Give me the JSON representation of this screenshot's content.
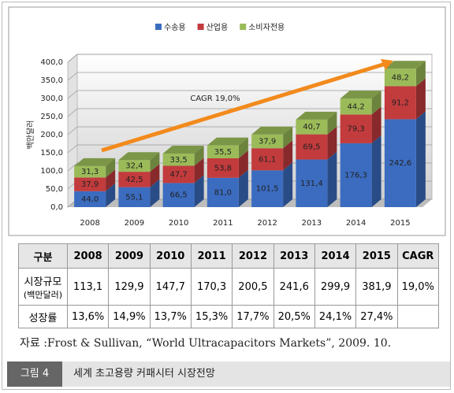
{
  "chart_data": {
    "type": "bar3d-stacked",
    "categories": [
      "2008",
      "2009",
      "2010",
      "2011",
      "2012",
      "2013",
      "2014",
      "2015"
    ],
    "series": [
      {
        "name": "수송용",
        "color": "#3b6cc0",
        "values": [
          44.0,
          55.1,
          66.5,
          81.0,
          101.5,
          131.4,
          176.3,
          242.6
        ],
        "value_labels": [
          "44,0",
          "55,1",
          "66,5",
          "81,0",
          "101,5",
          "131,4",
          "176,3",
          "242,6"
        ]
      },
      {
        "name": "산업용",
        "color": "#c23b3d",
        "values": [
          37.9,
          42.5,
          47.7,
          53.8,
          61.1,
          69.5,
          79.3,
          91.2
        ],
        "value_labels": [
          "37,9",
          "42,5",
          "47,7",
          "53,8",
          "61,1",
          "69,5",
          "79,3",
          "91,2"
        ]
      },
      {
        "name": "소비자전용",
        "color": "#9bbb59",
        "values": [
          31.3,
          32.4,
          33.5,
          35.5,
          37.9,
          40.7,
          44.2,
          48.2
        ],
        "value_labels": [
          "31,3",
          "32,4",
          "33,5",
          "35,5",
          "37,9",
          "40,7",
          "44,2",
          "48,2"
        ]
      }
    ],
    "ylabel": "백만달러",
    "annotation": "CAGR 19,0%",
    "ylim": [
      0,
      400
    ],
    "yticks": [
      {
        "value": 0,
        "label": "0,0"
      },
      {
        "value": 50,
        "label": "50,0"
      },
      {
        "value": 100,
        "label": "100,0"
      },
      {
        "value": 150,
        "label": "150,0"
      },
      {
        "value": 200,
        "label": "200,0"
      },
      {
        "value": 250,
        "label": "250,0"
      },
      {
        "value": 300,
        "label": "300,0"
      },
      {
        "value": 350,
        "label": "350,0"
      },
      {
        "value": 400,
        "label": "400,0"
      }
    ],
    "grid": true
  },
  "table": {
    "header": [
      "구분",
      "2008",
      "2009",
      "2010",
      "2011",
      "2012",
      "2013",
      "2014",
      "2015",
      "CAGR"
    ],
    "rows": [
      {
        "label": "시장규모",
        "sublabel": "(백만달러)",
        "cells": [
          "113,1",
          "129,9",
          "147,7",
          "170,3",
          "200,5",
          "241,6",
          "299,9",
          "381,9",
          "19,0%"
        ]
      },
      {
        "label": "성장률",
        "cells": [
          "13,6%",
          "14,9%",
          "13,7%",
          "15,3%",
          "17,7%",
          "20,5%",
          "24,1%",
          "27,4%"
        ]
      }
    ]
  },
  "source": "자료 :Frost & Sullivan, “World Ultracapacitors Markets”, 2009. 10.",
  "caption": {
    "number": "그림 4",
    "title": "세계 초고용량 커패시터 시장전망"
  }
}
